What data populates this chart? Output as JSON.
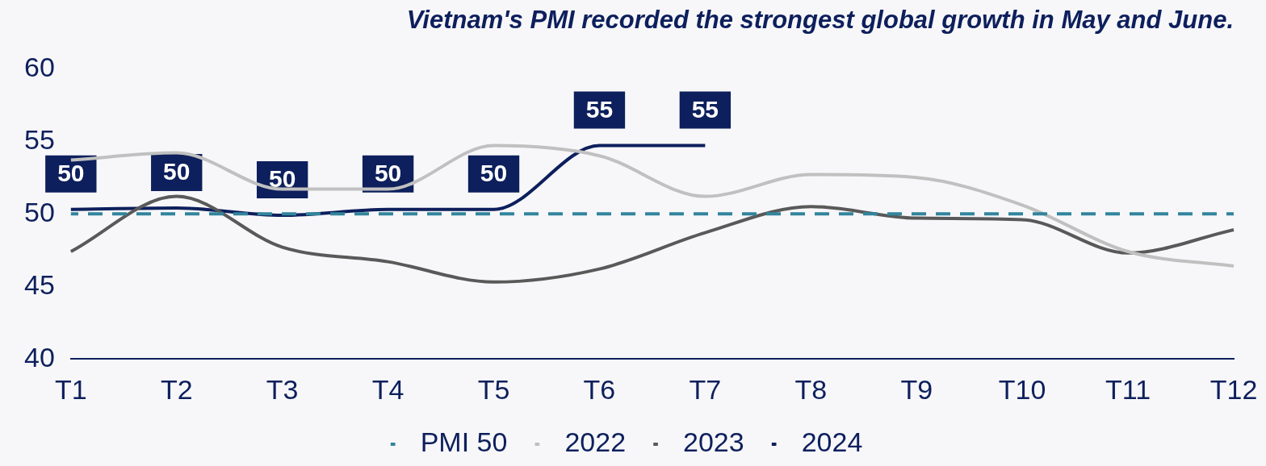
{
  "chart_data": {
    "type": "line",
    "title": "Vietnam's PMI recorded the strongest global growth in May and June.",
    "categories": [
      "T1",
      "T2",
      "T3",
      "T4",
      "T5",
      "T6",
      "T7",
      "T8",
      "T9",
      "T10",
      "T11",
      "T12"
    ],
    "series": [
      {
        "name": "PMI 50",
        "color": "#31859c",
        "line_style": "dashed",
        "values": [
          50,
          50,
          50,
          50,
          50,
          50,
          50,
          50,
          50,
          50,
          50,
          50
        ]
      },
      {
        "name": "2022",
        "color": "#c0c0c0",
        "values": [
          53.7,
          54.2,
          51.7,
          51.7,
          54.7,
          54.0,
          51.2,
          52.7,
          52.5,
          50.6,
          47.4,
          46.4
        ]
      },
      {
        "name": "2023",
        "color": "#595959",
        "values": [
          47.4,
          51.2,
          47.7,
          46.7,
          45.3,
          46.2,
          48.7,
          50.5,
          49.7,
          49.6,
          47.3,
          48.9
        ]
      },
      {
        "name": "2024",
        "color": "#0d1f5c",
        "values": [
          50.3,
          50.4,
          49.9,
          50.3,
          50.3,
          54.7,
          54.7,
          null,
          null,
          null,
          null,
          null
        ],
        "value_labels": [
          "50",
          "50",
          "50",
          "50",
          "50",
          "55",
          "55",
          null,
          null,
          null,
          null,
          null
        ]
      }
    ],
    "ylim": [
      40,
      60
    ],
    "yticks": [
      40,
      45,
      50,
      55,
      60
    ],
    "grid": false,
    "legend": "bottom",
    "marker": "none"
  }
}
